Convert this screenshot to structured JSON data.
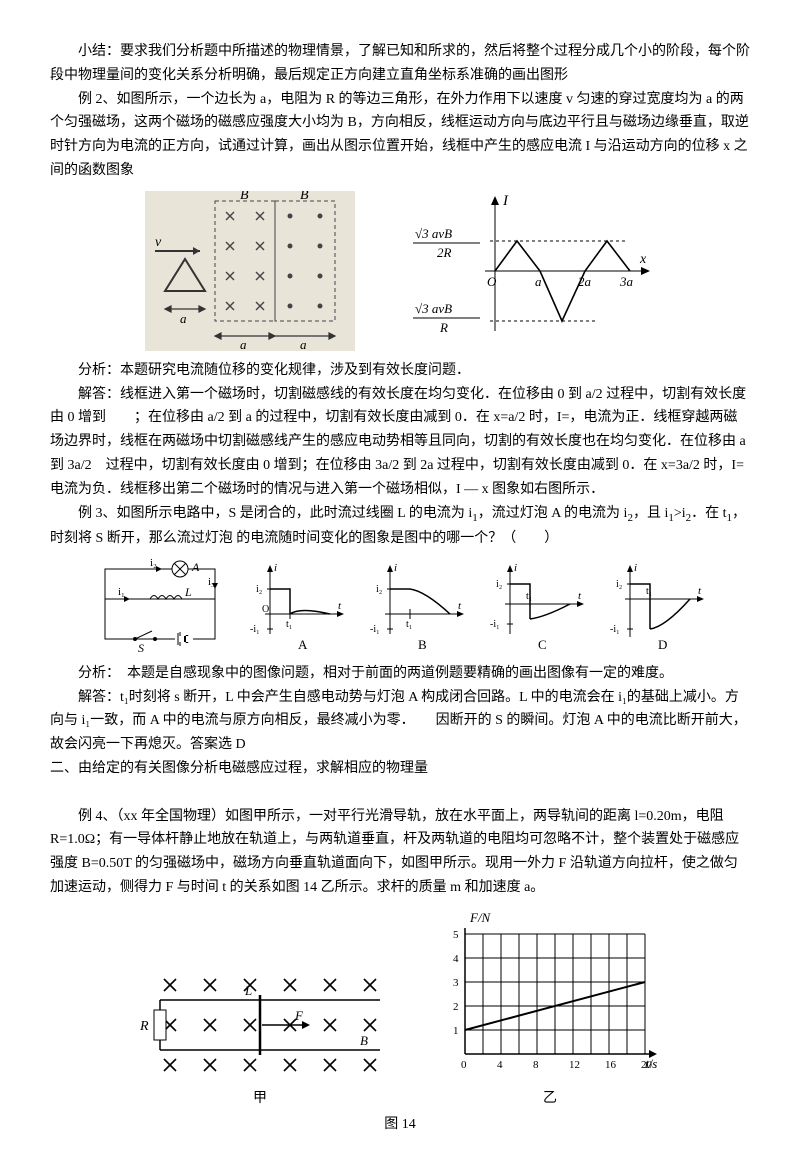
{
  "summary_label": "小结：",
  "summary": "要求我们分析题中所描述的物理情景，了解已知和所求的，然后将整个过程分成几个小的阶段，每个阶段中物理量间的变化关系分析明确，最后规定正方向建立直角坐标系准确的画出图形",
  "ex2": {
    "label": "例 2、",
    "text": "如图所示，一个边长为 a，电阻为 R 的等边三角形，在外力作用下以速度 v 匀速的穿过宽度均为 a 的两个匀强磁场，这两个磁场的磁感应强度大小均为 B，方向相反，线框运动方向与底边平行且与磁场边缘垂直，取逆时针方向为电流的正方向，试通过计算，画出从图示位置开始，线框中产生的感应电流 I 与沿运动方向的位移 x 之间的函数图象",
    "leftfig": {
      "B_label": "B",
      "v_label": "v",
      "a_label": "a",
      "cross_color": "#444",
      "dot_color": "#444",
      "stroke": "#444"
    },
    "rightfig": {
      "I_label": "I",
      "x_label": "x",
      "tick_a": "a",
      "tick_2a": "2a",
      "tick_3a": "3a",
      "top_frac_num": "√3 avB",
      "top_frac_den": "2R",
      "bot_frac_num": "√3 avB",
      "bot_frac_den": "R",
      "stroke": "#000"
    },
    "analysis_label": "分析：",
    "analysis": "本题研究电流随位移的变化规律，涉及到有效长度问题．",
    "answer_label": "解答：",
    "answer": "线框进入第一个磁场时，切割磁感线的有效长度在均匀变化．在位移由 0 到 a/2 过程中，切割有效长度由 0 增到　　；在位移由 a/2 到 a 的过程中，切割有效长度由减到 0．在 x=a/2 时，I=，电流为正．线框穿越两磁场边界时，线框在两磁场中切割磁感线产生的感应电动势相等且同向，切割的有效长度也在均匀变化．在位移由 a 到 3a/2　过程中，切割有效长度由 0 增到；在位移由 3a/2 到 2a 过程中，切割有效长度由减到 0．在 x=3a/2 时，I=电流为负．线框移出第二个磁场时的情况与进入第一个磁场相似，I — x 图象如右图所示．"
  },
  "ex3": {
    "label": "例 3、",
    "text1": "如图所示电路中，S 是闭合的，此时流过线圈 L 的电流为 i",
    "text2": "，流过灯泡 A 的电流为 i",
    "text3": "，且 i",
    "text4": ">i",
    "text5": "．在 t",
    "text6": "，时刻将 S 断开，那么流过灯泡 的电流随时间变化的图象是图中的哪一个？（　　）",
    "s1": "1",
    "s2": "2",
    "circuit": {
      "A": "A",
      "L": "L",
      "S": "S",
      "i1": "i₁",
      "i2": "i₂",
      "i3": "i₃"
    },
    "options": {
      "i": "i",
      "t": "t",
      "i2": "i₂",
      "neg_i1": "-i₁",
      "O": "O",
      "t1": "t₁",
      "A": "A",
      "B": "B",
      "C": "C",
      "D": "D"
    },
    "analysis_label": "分析：",
    "analysis": "　本题是自感现象中的图像问题，相对于前面的两道例题要精确的画出图像有一定的难度。",
    "answer_label": "解答：",
    "answer1": "t₁时刻将 s 断开，L 中会产生自感电动势与灯泡 A 构成闭合回路。L 中的电流会在 i₁的基础上减小。方向与 i₁一致，而 A 中的电流与原方向相反，最终减小为零．　　因断开的 S 的瞬间。灯泡 A 中的电流比断开前大，故会闪亮一下再熄灭。答案选 D"
  },
  "section2": "二、由给定的有关图像分析电磁感应过程，求解相应的物理量",
  "ex4": {
    "label": "例 4、",
    "text": "（xx 年全国物理）如图甲所示，一对平行光滑导轨，放在水平面上，两导轨间的距离 l=0.20m，电阻 R=1.0Ω；有一导体杆静止地放在轨道上，与两轨道垂直，杆及两轨道的电阻均可忽略不计，整个装置处于磁感应强度 B=0.50T 的匀强磁场中，磁场方向垂直轨道面向下，如图甲所示。现用一外力 F 沿轨道方向拉杆，使之做匀加速运动，侧得力 F 与时间 t 的关系如图 14 乙所示。求杆的质量 m 和加速度 a。",
    "leftfig": {
      "R": "R",
      "L": "L",
      "F": "F",
      "B": "B"
    },
    "rightfig": {
      "ylabel": "F/N",
      "xlabel": "t/s",
      "yticks": [
        1,
        2,
        3,
        4,
        5
      ],
      "xticks": [
        0,
        4,
        8,
        12,
        16,
        20
      ],
      "line": {
        "x1": 0,
        "y1": 1,
        "x2": 20,
        "y2": 3
      },
      "grid_color": "#000"
    },
    "caption_left": "甲",
    "caption_right": "乙",
    "caption_main": "图 14"
  }
}
